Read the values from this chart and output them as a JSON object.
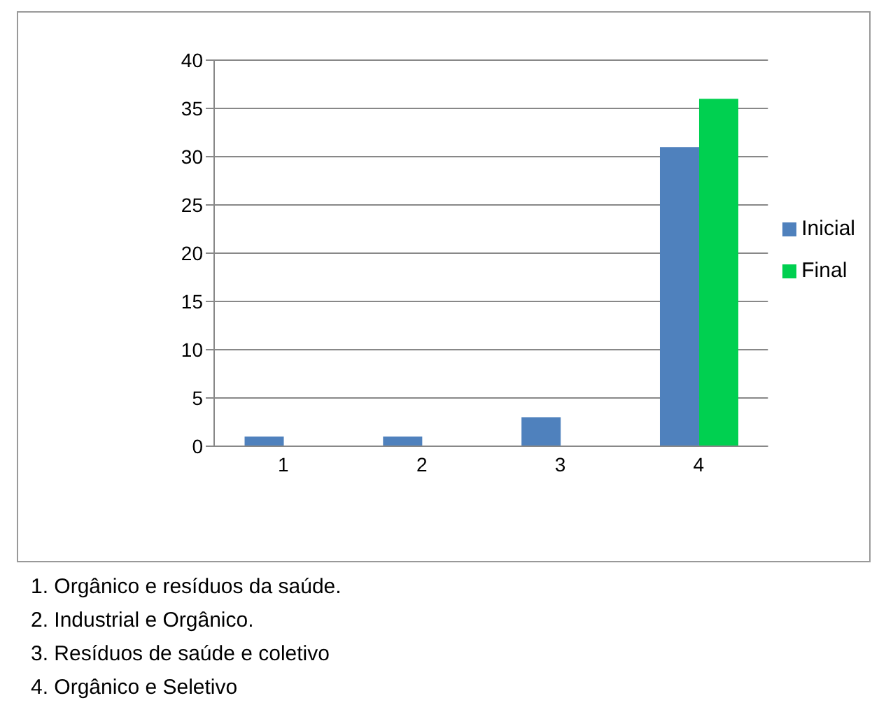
{
  "chart_data": {
    "type": "bar",
    "categories": [
      "1",
      "2",
      "3",
      "4"
    ],
    "series": [
      {
        "name": "Inicial",
        "color": "#4f81bd",
        "values": [
          1,
          1,
          3,
          31
        ]
      },
      {
        "name": "Final",
        "color": "#00d050",
        "values": [
          0,
          0,
          0,
          36
        ]
      }
    ],
    "ylim": [
      0,
      40
    ],
    "yticks": [
      0,
      5,
      10,
      15,
      20,
      25,
      30,
      35,
      40
    ],
    "grid": "y",
    "legend": "right",
    "annotations": [
      "1. Orgânico e resíduos da saúde.",
      "2. Industrial e Orgânico.",
      "3. Resíduos de saúde e coletivo",
      "4. Orgânico e Seletivo"
    ]
  }
}
